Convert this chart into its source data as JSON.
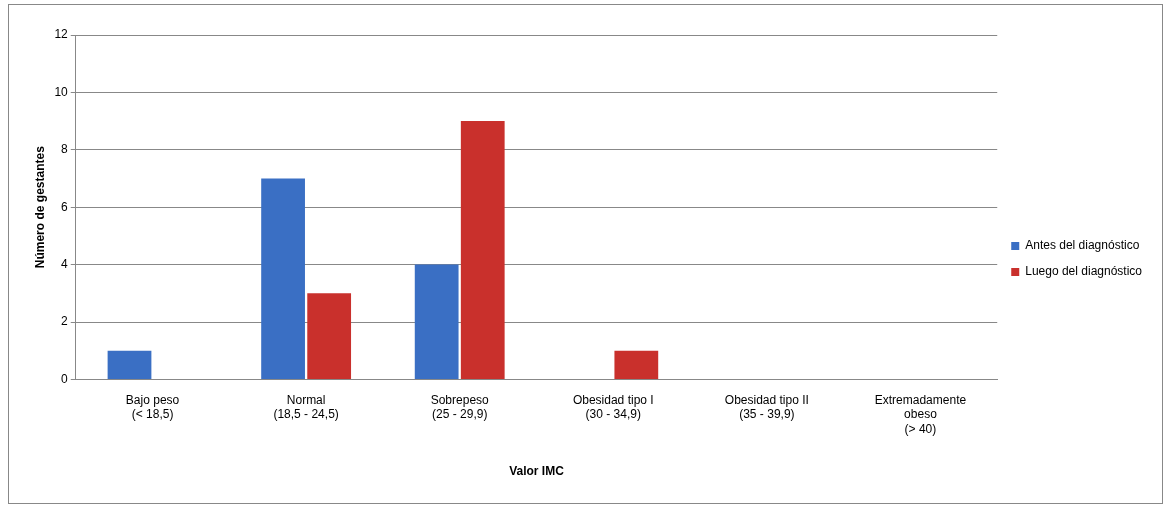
{
  "chart_data": {
    "type": "bar",
    "xlabel": "Valor IMC",
    "ylabel": "Número de gestantes",
    "categories": [
      "Bajo peso\n(< 18,5)",
      "Normal\n(18,5 - 24,5)",
      "Sobrepeso\n(25 - 29,9)",
      "Obesidad tipo I\n(30 - 34,9)",
      "Obesidad tipo II\n(35 - 39,9)",
      "Extremadamente\nobeso\n(> 40)"
    ],
    "series": [
      {
        "name": "Antes del diagnóstico",
        "color": "#3a6fc4",
        "values": [
          1,
          7,
          4,
          0,
          0,
          0
        ]
      },
      {
        "name": "Luego del diagnóstico",
        "color": "#c9302c",
        "values": [
          0,
          3,
          9,
          1,
          0,
          0
        ]
      }
    ],
    "ylim": [
      0,
      12
    ],
    "yticks": [
      0,
      2,
      4,
      6,
      8,
      10,
      12
    ],
    "grid": "y",
    "legend": "right"
  }
}
